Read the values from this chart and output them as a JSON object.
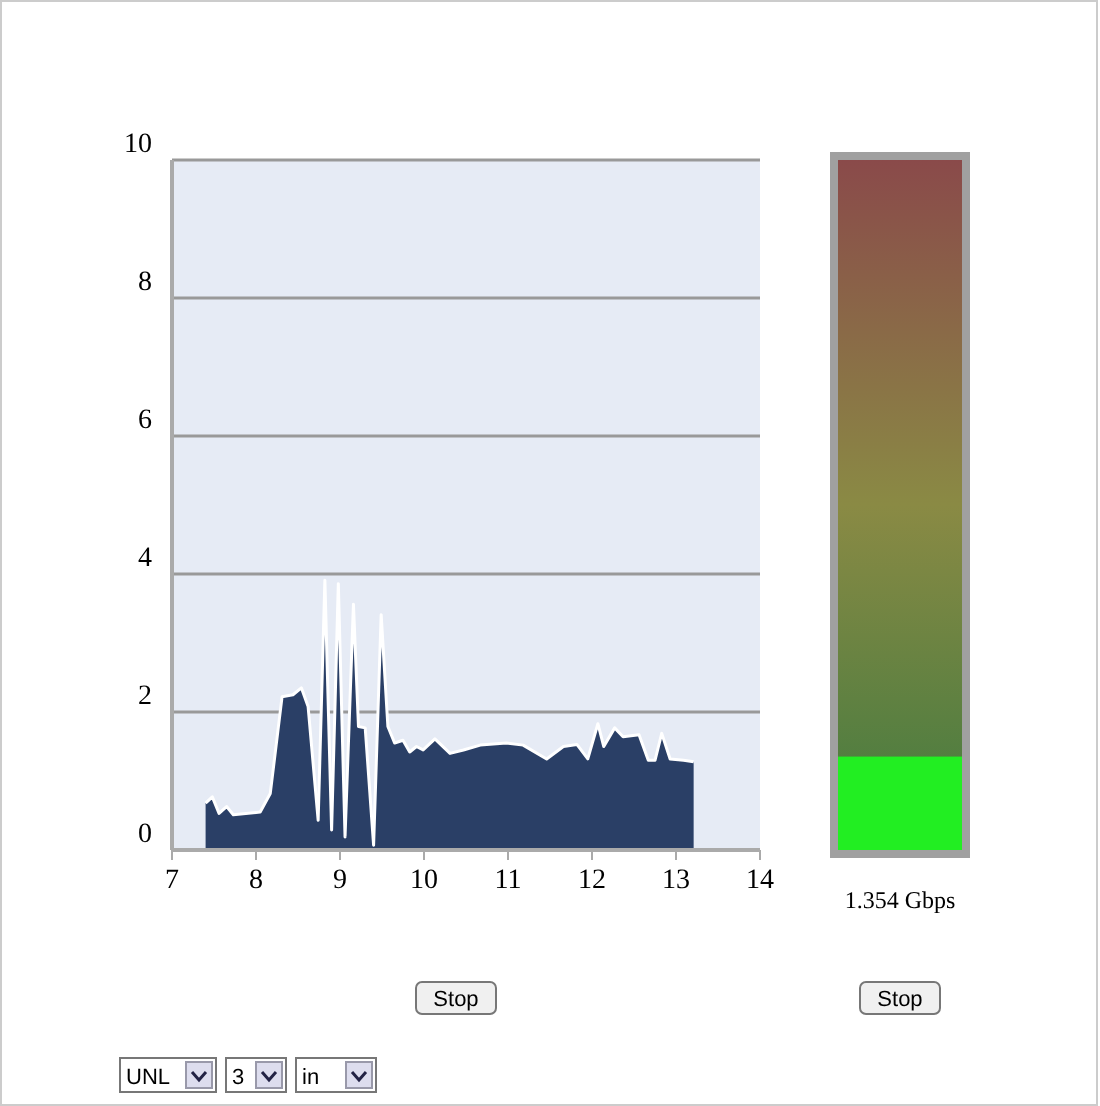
{
  "chart_data": [
    {
      "type": "area",
      "x": [
        7.4,
        7.48,
        7.56,
        7.65,
        7.73,
        8.05,
        8.17,
        8.31,
        8.44,
        8.54,
        8.62,
        8.74,
        8.82,
        8.9,
        8.98,
        9.06,
        9.16,
        9.22,
        9.3,
        9.4,
        9.49,
        9.57,
        9.65,
        9.75,
        9.83,
        9.91,
        9.99,
        10.13,
        10.31,
        10.47,
        10.67,
        10.98,
        11.18,
        11.46,
        11.66,
        11.82,
        11.95,
        12.07,
        12.14,
        12.27,
        12.37,
        12.56,
        12.67,
        12.75,
        12.83,
        12.93,
        13.09,
        13.21
      ],
      "series": [
        {
          "color": "#2a3f66",
          "values": [
            0.68,
            0.77,
            0.53,
            0.63,
            0.51,
            0.55,
            0.82,
            2.22,
            2.25,
            2.35,
            2.08,
            0.43,
            3.91,
            0.29,
            3.86,
            0.19,
            3.56,
            1.79,
            1.77,
            0.07,
            3.41,
            1.79,
            1.55,
            1.59,
            1.42,
            1.5,
            1.45,
            1.61,
            1.4,
            1.45,
            1.52,
            1.55,
            1.52,
            1.32,
            1.5,
            1.53,
            1.32,
            1.83,
            1.5,
            1.77,
            1.64,
            1.67,
            1.3,
            1.3,
            1.69,
            1.32,
            1.3,
            1.28
          ]
        }
      ],
      "xlim": [
        7,
        14
      ],
      "xticks": [
        7,
        8,
        9,
        10,
        11,
        12,
        13,
        14
      ],
      "ylim": [
        0,
        10
      ],
      "yticks": [
        0,
        2,
        4,
        6,
        8,
        10
      ],
      "grid": "y",
      "annotations": [
        "Stop",
        "UNL",
        "3",
        "in"
      ]
    },
    {
      "type": "bar",
      "categories": [
        null
      ],
      "series": [
        {
          "color": "#22ee22",
          "values": [
            1.354
          ]
        }
      ],
      "value_labels": [
        "1.354 Gbps"
      ],
      "ylim": [
        0,
        10
      ],
      "annotations": [
        "Stop"
      ]
    }
  ]
}
